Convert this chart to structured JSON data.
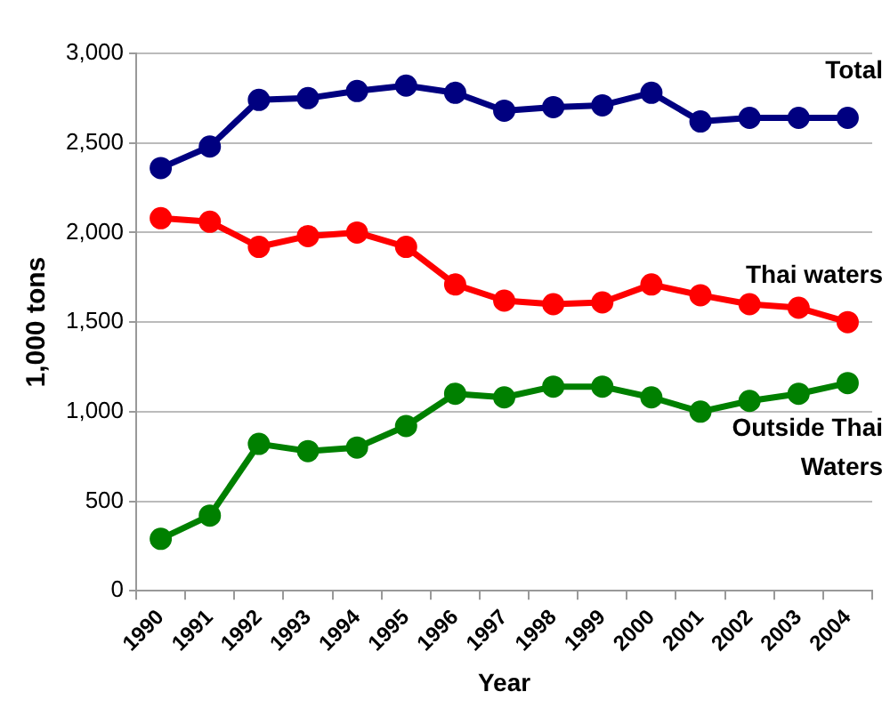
{
  "chart_data": {
    "type": "line",
    "xlabel": "Year",
    "ylabel": "1,000 tons",
    "categories": [
      "1990",
      "1991",
      "1992",
      "1993",
      "1994",
      "1995",
      "1996",
      "1997",
      "1998",
      "1999",
      "2000",
      "2001",
      "2002",
      "2003",
      "2004"
    ],
    "series": [
      {
        "name": "Total",
        "color": "#000080",
        "values": [
          2360,
          2480,
          2740,
          2750,
          2790,
          2820,
          2780,
          2680,
          2700,
          2710,
          2780,
          2620,
          2640,
          2640,
          2640
        ]
      },
      {
        "name": "Thai waters",
        "color": "#ff0000",
        "values": [
          2080,
          2060,
          1920,
          1980,
          2000,
          1920,
          1710,
          1620,
          1600,
          1610,
          1710,
          1650,
          1600,
          1580,
          1500
        ]
      },
      {
        "name": "Outside Thai Waters",
        "color": "#008000",
        "values": [
          290,
          420,
          820,
          780,
          800,
          920,
          1100,
          1080,
          1140,
          1140,
          1080,
          1000,
          1060,
          1100,
          1160
        ]
      }
    ],
    "ylim": [
      0,
      3000
    ],
    "yticks": [
      {
        "value": 0,
        "label": "0"
      },
      {
        "value": 500,
        "label": "500"
      },
      {
        "value": 1000,
        "label": "1,000"
      },
      {
        "value": 1500,
        "label": "1,500"
      },
      {
        "value": 2000,
        "label": "2,000"
      },
      {
        "value": 2500,
        "label": "2,500"
      },
      {
        "value": 3000,
        "label": "3,000"
      }
    ],
    "grid": "y",
    "legend": false,
    "marker": "circle",
    "line_style": "solid"
  }
}
